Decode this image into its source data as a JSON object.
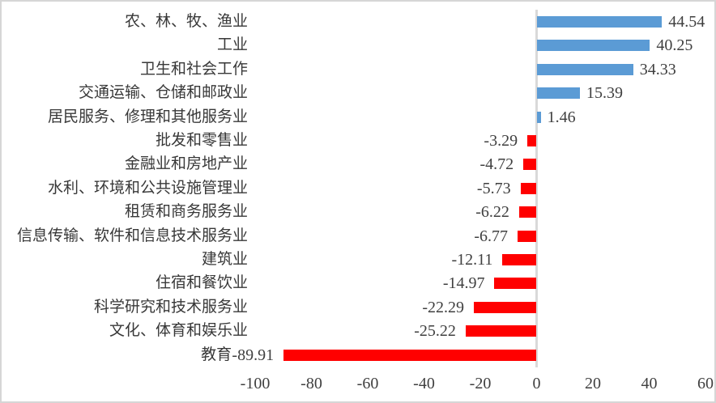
{
  "chart_data": {
    "type": "bar",
    "orientation": "horizontal",
    "title": "",
    "xlabel": "",
    "ylabel": "",
    "xlim": [
      -100,
      60
    ],
    "grid": false,
    "legend": false,
    "categories": [
      "农、林、牧、渔业",
      "工业",
      "卫生和社会工作",
      "交通运输、仓储和邮政业",
      "居民服务、修理和其他服务业",
      "批发和零售业",
      "金融业和房地产业",
      "水利、环境和公共设施管理业",
      "租赁和商务服务业",
      "信息传输、软件和信息技术服务业",
      "建筑业",
      "住宿和餐饮业",
      "科学研究和技术服务业",
      "文化、体育和娱乐业",
      "教育"
    ],
    "values": [
      44.54,
      40.25,
      34.33,
      15.39,
      1.46,
      -3.29,
      -4.72,
      -5.73,
      -6.22,
      -6.77,
      -12.11,
      -14.97,
      -22.29,
      -25.22,
      -89.91
    ],
    "value_labels": [
      "44.54",
      "40.25",
      "34.33",
      "15.39",
      "1.46",
      "-3.29",
      "-4.72",
      "-5.73",
      "-6.22",
      "-6.77",
      "-12.11",
      "-14.97",
      "-22.29",
      "-25.22",
      "-89.91"
    ],
    "x_ticks": [
      -100,
      -80,
      -60,
      -40,
      -20,
      0,
      20,
      40,
      60
    ],
    "x_tick_labels": [
      "-100",
      "-80",
      "-60",
      "-40",
      "-20",
      "0",
      "20",
      "40",
      "60"
    ],
    "positive_color": "#5b9bd5",
    "negative_color": "#ff0000",
    "axis_line_color": "#d9d9d9"
  }
}
